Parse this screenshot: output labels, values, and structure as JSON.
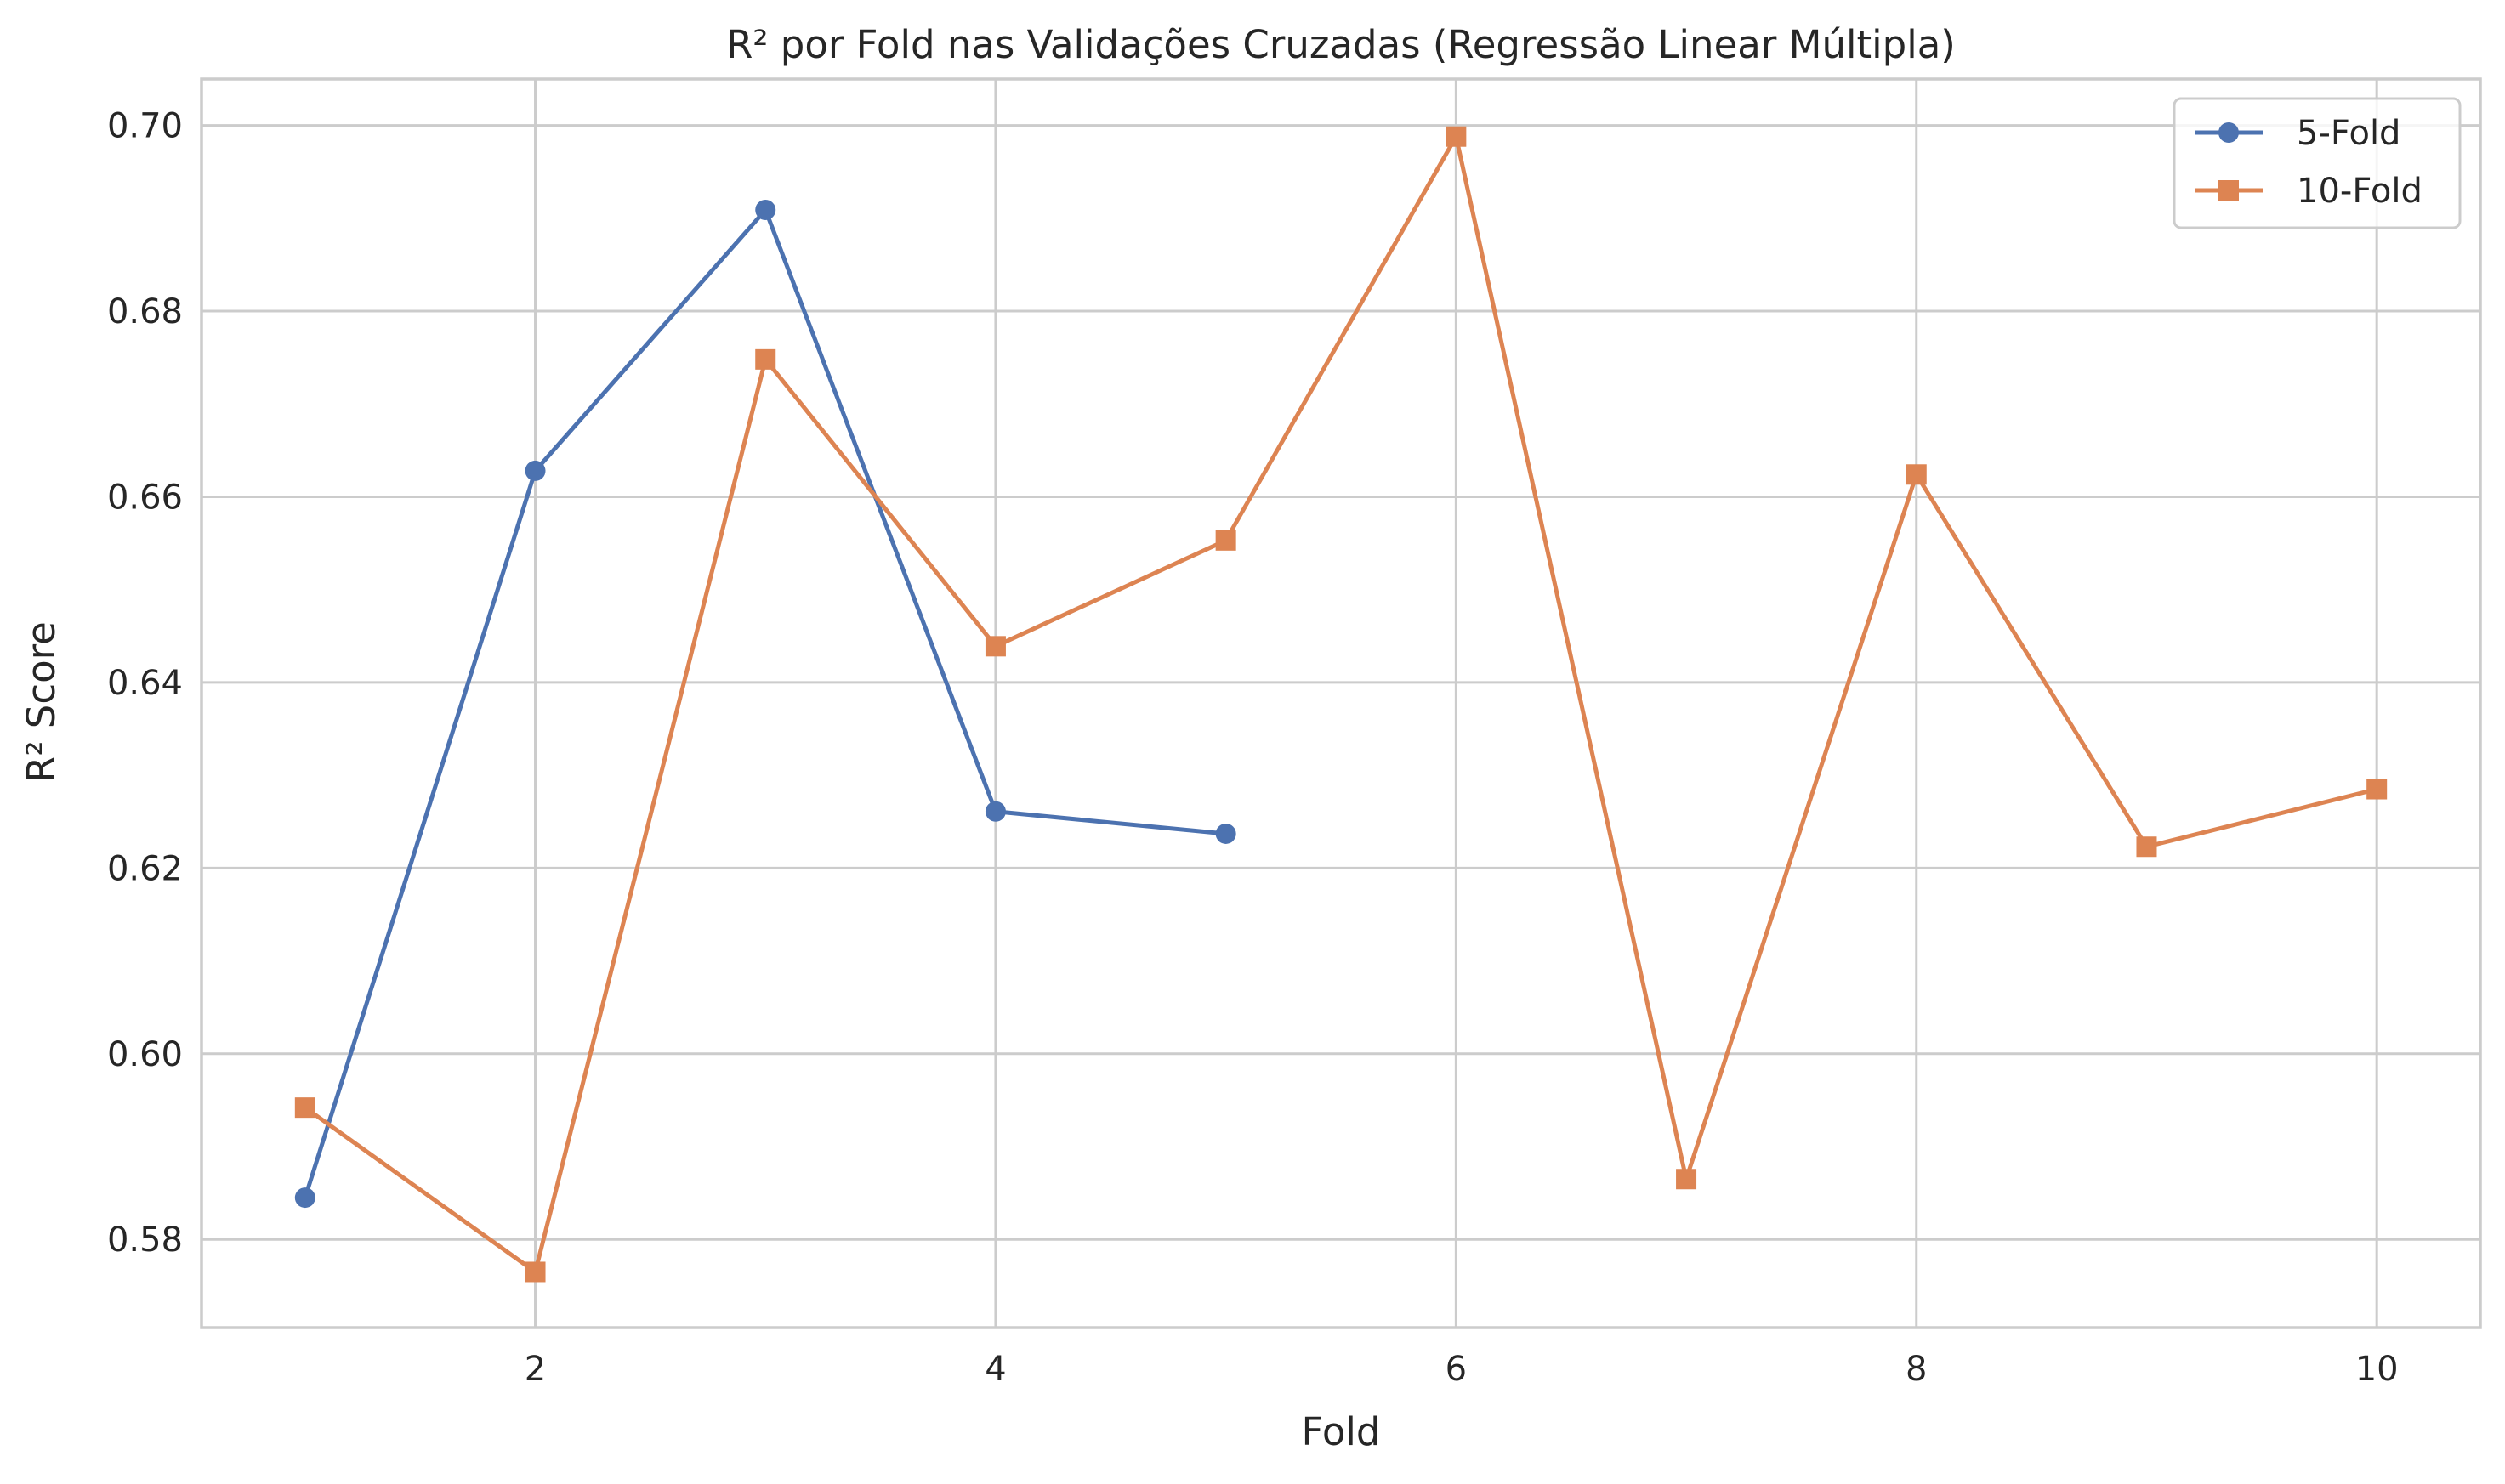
{
  "chart_data": {
    "type": "line",
    "title": "R² por Fold nas Validações Cruzadas (Regressão Linear Múltipla)",
    "xlabel": "Fold",
    "ylabel": "R² Score",
    "xlim": [
      0.55,
      10.45
    ],
    "ylim": [
      0.5705,
      0.705
    ],
    "xticks": [
      2,
      4,
      6,
      8,
      10
    ],
    "xtick_labels": [
      "2",
      "4",
      "6",
      "8",
      "10"
    ],
    "yticks": [
      0.58,
      0.6,
      0.62,
      0.64,
      0.66,
      0.68,
      0.7
    ],
    "ytick_labels": [
      "0.58",
      "0.60",
      "0.62",
      "0.64",
      "0.66",
      "0.68",
      "0.70"
    ],
    "grid": true,
    "legend_position": "top-right",
    "series": [
      {
        "name": "5-Fold",
        "marker": "circle",
        "color": "#4c72b0",
        "x": [
          1,
          2,
          3,
          4,
          5
        ],
        "y": [
          0.5845,
          0.6628,
          0.6909,
          0.6261,
          0.6237
        ]
      },
      {
        "name": "10-Fold",
        "marker": "square",
        "color": "#dd8452",
        "x": [
          1,
          2,
          3,
          4,
          5,
          6,
          7,
          8,
          9,
          10
        ],
        "y": [
          0.5942,
          0.5765,
          0.6748,
          0.6439,
          0.6553,
          0.6988,
          0.5865,
          0.6624,
          0.6223,
          0.6285
        ]
      }
    ]
  }
}
